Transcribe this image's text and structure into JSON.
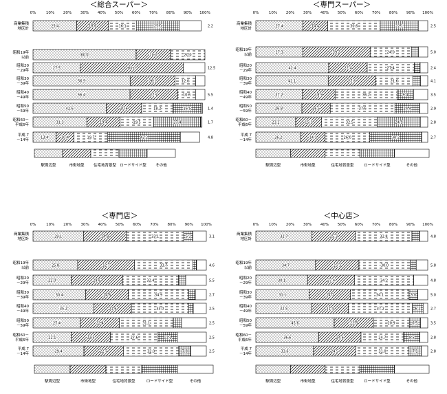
{
  "legend_labels": [
    "駅周辺型",
    "市街地型",
    "住宅地背景型",
    "ロードサイド型",
    "その他"
  ],
  "patterns": [
    "dots",
    "diag",
    "dash",
    "grid",
    "blank"
  ],
  "chart_data": [
    {
      "type": "bar",
      "stacked": true,
      "orientation": "horizontal",
      "title": "＜総合スーパー＞",
      "ticks": [
        "0%",
        "10%",
        "20%",
        "30%",
        "40%",
        "50%",
        "60%",
        "70%",
        "80%",
        "90%",
        "100%"
      ],
      "xlim": [
        0,
        100
      ],
      "categories": [
        "商業集積地区計",
        "昭和19年以前",
        "昭和20～29年",
        "昭和30～39年",
        "昭和40～49年",
        "昭和50～59年",
        "昭和60～平成6年",
        "平成7～14年"
      ],
      "series": [
        {
          "name": "駅周辺型",
          "values": [
            25.4,
            60.0,
            27.5,
            56.5,
            56.4,
            42.6,
            31.3,
            13.4
          ]
        },
        {
          "name": "市街地型",
          "values": [
            18.6,
            20.0,
            60.0,
            26.1,
            27.7,
            20.6,
            19.4,
            10.4
          ]
        },
        {
          "name": "住宅地背景型",
          "values": [
            16.1,
            20.0,
            0,
            12.0,
            10.6,
            18.2,
            19.5,
            19.7
          ]
        },
        {
          "name": "ロードサイド型",
          "values": [
            25.0,
            0,
            0,
            0,
            0,
            16.5,
            27.4,
            42.2
          ]
        },
        {
          "name": "その他",
          "values": [
            12.7,
            0,
            12.5,
            5.4,
            5.3,
            0.7,
            0.7,
            11.2
          ]
        }
      ],
      "end_labels": [
        "2.2",
        "",
        "12.5",
        "",
        "5.5",
        "1.4",
        "1.7",
        "4.8"
      ]
    },
    {
      "type": "bar",
      "stacked": true,
      "orientation": "horizontal",
      "title": "＜専門スーパー＞",
      "ticks": [
        "0%",
        "10%",
        "20%",
        "30%",
        "40%",
        "50%",
        "60%",
        "70%",
        "80%",
        "90%",
        "100%"
      ],
      "xlim": [
        0,
        100
      ],
      "categories": [
        "商業集積地区計",
        "昭和19年以前",
        "昭和20～29年",
        "昭和30～39年",
        "昭和40～49年",
        "昭和50～59年",
        "昭和60～平成6年",
        "平成7～14年"
      ],
      "series": [
        {
          "name": "駅周辺型",
          "values": [
            27.4,
            27.3,
            42.4,
            42.1,
            27.2,
            26.8,
            23.2,
            26.2
          ]
        },
        {
          "name": "市街地型",
          "values": [
            14.4,
            39.2,
            22.4,
            27.6,
            18.9,
            16.5,
            15.1,
            14.1
          ]
        },
        {
          "name": "住宅地背景型",
          "values": [
            30.6,
            24.0,
            27.4,
            21.6,
            36.2,
            37.6,
            32.5,
            26.0
          ]
        },
        {
          "name": "ロードサイド型",
          "values": [
            22.1,
            4.1,
            3.4,
            4.5,
            9.4,
            14.4,
            24.9,
            30.2
          ]
        },
        {
          "name": "その他",
          "values": [
            5.5,
            5.4,
            4.4,
            4.2,
            8.3,
            4.7,
            4.3,
            3.5
          ]
        }
      ],
      "end_labels": [
        "2.5",
        "5.0",
        "2.4",
        "4.1",
        "3.5",
        "2.9",
        "2.8",
        "2.7"
      ]
    },
    {
      "type": "bar",
      "stacked": true,
      "orientation": "horizontal",
      "title": "＜専門店＞",
      "ticks": [
        "0%",
        "10%",
        "20%",
        "30%",
        "40%",
        "50%",
        "60%",
        "70%",
        "80%",
        "90%",
        "100%"
      ],
      "xlim": [
        0,
        100
      ],
      "categories": [
        "商業集積地区計",
        "昭和19年以前",
        "昭和20～29年",
        "昭和30～39年",
        "昭和40～49年",
        "昭和50～59年",
        "昭和60～平成6年",
        "平成7～14年"
      ],
      "series": [
        {
          "name": "駅周辺型",
          "values": [
            29.1,
            25.8,
            22.0,
            30.4,
            35.2,
            27.4,
            22.1,
            29.4
          ]
        },
        {
          "name": "市街地型",
          "values": [
            24.8,
            32.7,
            29.6,
            24.6,
            21.6,
            22.4,
            22.5,
            22.7
          ]
        },
        {
          "name": "住宅地背景型",
          "values": [
            33.1,
            33.7,
            32.4,
            34.9,
            33.0,
            31.1,
            27.6,
            32.0
          ]
        },
        {
          "name": "ロードサイド型",
          "values": [
            5.2,
            2.2,
            4.1,
            3.8,
            2.7,
            4.8,
            11.1,
            7.0
          ]
        },
        {
          "name": "その他",
          "values": [
            7.8,
            5.6,
            11.9,
            6.3,
            7.5,
            14.3,
            16.7,
            8.9
          ]
        }
      ],
      "end_labels": [
        "3.1",
        "4.6",
        "5.5",
        "2.7",
        "2.5",
        "2.5",
        "2.5",
        "2.5"
      ]
    },
    {
      "type": "bar",
      "stacked": true,
      "orientation": "horizontal",
      "title": "＜中心店＞",
      "ticks": [
        "0%",
        "10%",
        "20%",
        "30%",
        "40%",
        "50%",
        "60%",
        "70%",
        "80%",
        "90%",
        "100%"
      ],
      "xlim": [
        0,
        100
      ],
      "categories": [
        "商業集積地区計",
        "昭和19年以前",
        "昭和20～29年",
        "昭和30～39年",
        "昭和40～49年",
        "昭和50～59年",
        "昭和60～平成6年",
        "平成7～14年"
      ],
      "series": [
        {
          "name": "駅周辺型",
          "values": [
            32.7,
            34.7,
            30.1,
            31.1,
            32.5,
            45.6,
            36.6,
            33.6
          ]
        },
        {
          "name": "市街地型",
          "values": [
            25.3,
            25.3,
            27.4,
            24.0,
            21.4,
            22.8,
            24.6,
            24.5
          ]
        },
        {
          "name": "住宅地背景型",
          "values": [
            32.8,
            30.0,
            34.2,
            34.1,
            37.2,
            20.9,
            24.7,
            31.0
          ]
        },
        {
          "name": "ロードサイド型",
          "values": [
            4.4,
            3.3,
            0.1,
            5.0,
            6.2,
            6.5,
            9.5,
            7.1
          ]
        },
        {
          "name": "その他",
          "values": [
            4.8,
            6.7,
            8.2,
            5.8,
            2.7,
            4.2,
            4.6,
            3.8
          ]
        }
      ],
      "end_labels": [
        "4.8",
        "5.8",
        "4.8",
        "5.0",
        "2.7",
        "3.5",
        "2.8",
        "2.8"
      ]
    }
  ]
}
